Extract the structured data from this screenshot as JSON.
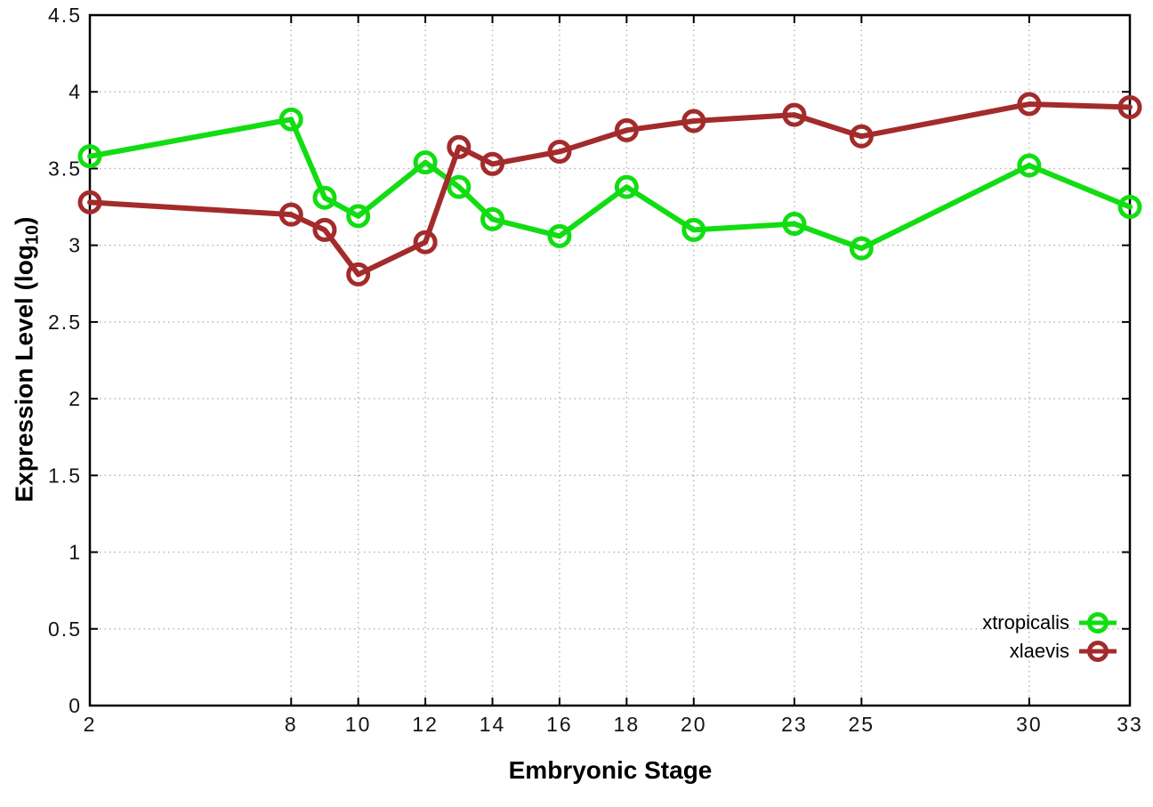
{
  "chart_data": {
    "type": "line",
    "x": [
      2,
      8,
      9,
      10,
      12,
      13,
      14,
      16,
      18,
      20,
      23,
      25,
      30,
      33
    ],
    "series": [
      {
        "name": "xtropicalis",
        "color": "#12dd12",
        "values": [
          3.58,
          3.82,
          3.31,
          3.19,
          3.54,
          3.38,
          3.17,
          3.06,
          3.38,
          3.1,
          3.14,
          2.98,
          3.52,
          3.25
        ]
      },
      {
        "name": "xlaevis",
        "color": "#a32b2b",
        "values": [
          3.28,
          3.2,
          3.1,
          2.81,
          3.02,
          3.64,
          3.53,
          3.61,
          3.75,
          3.81,
          3.85,
          3.71,
          3.92,
          3.9
        ]
      }
    ],
    "xlabel": "Embryonic Stage",
    "ylabel": "Expression Level (log10)",
    "ylabel_parts": {
      "prefix": "Expression Level (log",
      "subscript": "10",
      "suffix": ")"
    },
    "xlim": [
      2,
      33
    ],
    "ylim": [
      0,
      4.5
    ],
    "xticks": {
      "values": [
        2,
        8,
        10,
        12,
        14,
        16,
        18,
        20,
        23,
        25,
        30,
        33
      ],
      "labels": [
        "2",
        "8",
        "10",
        "12",
        "14",
        "16",
        "18",
        "20",
        "23",
        "25",
        "30",
        "33"
      ]
    },
    "yticks": {
      "values": [
        0,
        0.5,
        1,
        1.5,
        2,
        2.5,
        3,
        3.5,
        4,
        4.5
      ],
      "labels": [
        "0",
        "0.5",
        "1",
        "1.5",
        "2",
        "2.5",
        "3",
        "3.5",
        "4",
        "4.5"
      ]
    },
    "grid": true,
    "legend_position": "bottom-right",
    "style": {
      "background": "#ffffff",
      "grid_color": "#b0b0b0",
      "axis_color": "#000000",
      "line_width": 6,
      "marker": "open-circle",
      "marker_radius": 11,
      "marker_stroke": 5
    }
  }
}
